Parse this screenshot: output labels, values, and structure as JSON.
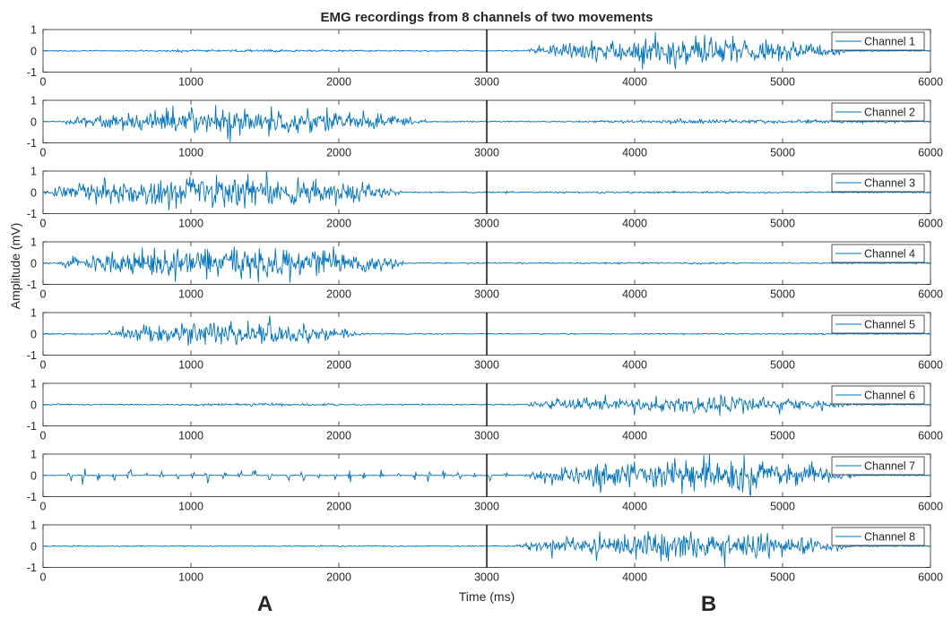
{
  "chart_data": {
    "type": "line",
    "title": "EMG recordings from 8 channels of two movements",
    "xlabel": "Time (ms)",
    "ylabel": "Amplitude (mV)",
    "xlim": [
      0,
      6000
    ],
    "ylim": [
      -1,
      1
    ],
    "xticks": [
      0,
      1000,
      2000,
      3000,
      4000,
      5000,
      6000
    ],
    "yticks": [
      -1,
      0,
      1
    ],
    "divider_x": 3000,
    "legend_position": "top-right",
    "series_color": "#0072BD",
    "series": [
      {
        "name": "Channel 1",
        "baseline_amplitude": 0.03,
        "bursts": [
          {
            "start": 350,
            "end": 2550,
            "amplitude": 0.06
          },
          {
            "start": 3250,
            "end": 5450,
            "amplitude": 0.65
          }
        ]
      },
      {
        "name": "Channel 2",
        "baseline_amplitude": 0.03,
        "bursts": [
          {
            "start": 120,
            "end": 2600,
            "amplitude": 0.65
          },
          {
            "start": 3400,
            "end": 6000,
            "amplitude": 0.1
          }
        ]
      },
      {
        "name": "Channel 3",
        "baseline_amplitude": 0.03,
        "bursts": [
          {
            "start": 0,
            "end": 2450,
            "amplitude": 0.8
          },
          {
            "start": 2450,
            "end": 6000,
            "amplitude": 0.05
          }
        ]
      },
      {
        "name": "Channel 4",
        "baseline_amplitude": 0.03,
        "bursts": [
          {
            "start": 100,
            "end": 2450,
            "amplitude": 0.8
          },
          {
            "start": 2450,
            "end": 6000,
            "amplitude": 0.04
          }
        ]
      },
      {
        "name": "Channel 5",
        "baseline_amplitude": 0.03,
        "bursts": [
          {
            "start": 400,
            "end": 2150,
            "amplitude": 0.6
          }
        ]
      },
      {
        "name": "Channel 6",
        "baseline_amplitude": 0.03,
        "bursts": [
          {
            "start": 600,
            "end": 2300,
            "amplitude": 0.06
          },
          {
            "start": 3250,
            "end": 5500,
            "amplitude": 0.42
          }
        ]
      },
      {
        "name": "Channel 7",
        "baseline_amplitude": 0.02,
        "spikes_between": [
          150,
          3150
        ],
        "bursts": [
          {
            "start": 3250,
            "end": 5500,
            "amplitude": 0.85
          }
        ]
      },
      {
        "name": "Channel 8",
        "baseline_amplitude": 0.03,
        "bursts": [
          {
            "start": 3200,
            "end": 5450,
            "amplitude": 0.75
          }
        ]
      }
    ],
    "annotations": [
      {
        "text": "A",
        "x": 1500
      },
      {
        "text": "B",
        "x": 4500
      }
    ]
  }
}
